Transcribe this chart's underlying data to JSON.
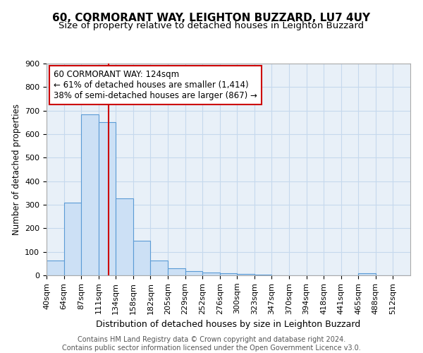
{
  "title1": "60, CORMORANT WAY, LEIGHTON BUZZARD, LU7 4UY",
  "title2": "Size of property relative to detached houses in Leighton Buzzard",
  "xlabel": "Distribution of detached houses by size in Leighton Buzzard",
  "ylabel": "Number of detached properties",
  "footnote": "Contains HM Land Registry data © Crown copyright and database right 2024.\nContains public sector information licensed under the Open Government Licence v3.0.",
  "bin_labels": [
    "40sqm",
    "64sqm",
    "87sqm",
    "111sqm",
    "134sqm",
    "158sqm",
    "182sqm",
    "205sqm",
    "229sqm",
    "252sqm",
    "276sqm",
    "300sqm",
    "323sqm",
    "347sqm",
    "370sqm",
    "394sqm",
    "418sqm",
    "441sqm",
    "465sqm",
    "488sqm",
    "512sqm"
  ],
  "bin_edges": [
    40,
    64,
    87,
    111,
    134,
    158,
    182,
    205,
    229,
    252,
    276,
    300,
    323,
    347,
    370,
    394,
    418,
    441,
    465,
    488,
    512
  ],
  "bar_heights": [
    62,
    310,
    685,
    650,
    328,
    148,
    63,
    30,
    18,
    11,
    8,
    5,
    4,
    1,
    1,
    0,
    0,
    0,
    10,
    0,
    0
  ],
  "bar_color": "#cce0f5",
  "bar_edge_color": "#5b9bd5",
  "bar_edge_width": 0.8,
  "grid_color": "#c5d9ed",
  "background_color": "#e8f0f8",
  "property_value": 124,
  "red_line_color": "#cc0000",
  "annotation_box_color": "#ffffff",
  "annotation_box_edge": "#cc0000",
  "annotation_text_line1": "60 CORMORANT WAY: 124sqm",
  "annotation_text_line2": "← 61% of detached houses are smaller (1,414)",
  "annotation_text_line3": "38% of semi-detached houses are larger (867) →",
  "annotation_fontsize": 8.5,
  "ylim": [
    0,
    900
  ],
  "yticks": [
    0,
    100,
    200,
    300,
    400,
    500,
    600,
    700,
    800,
    900
  ],
  "title1_fontsize": 11,
  "title2_fontsize": 9.5,
  "ylabel_fontsize": 8.5,
  "xlabel_fontsize": 9,
  "tick_fontsize": 8,
  "footnote_fontsize": 7
}
